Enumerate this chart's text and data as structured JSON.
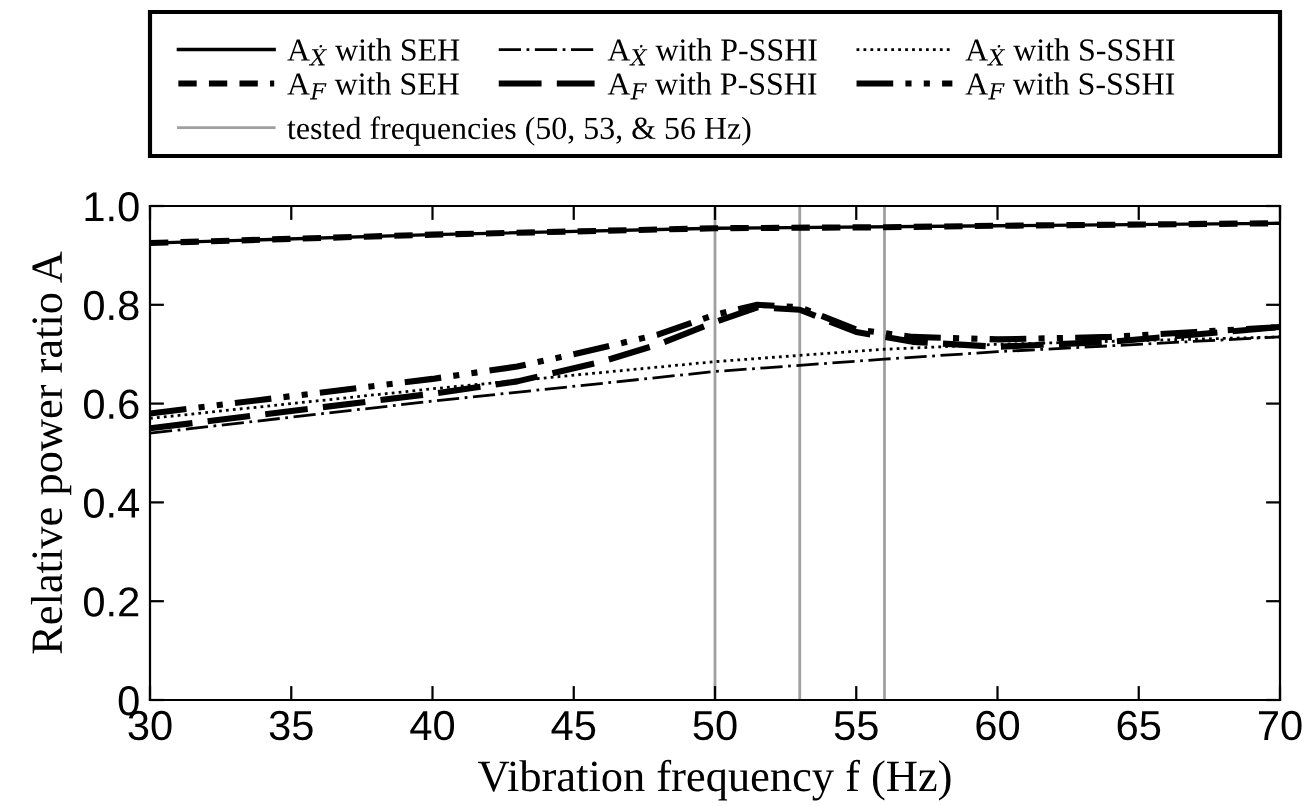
{
  "chart_data": {
    "type": "line",
    "xlabel": "Vibration frequency f (Hz)",
    "ylabel": "Relative power ratio A",
    "xlim": [
      30,
      70
    ],
    "xticks": [
      30,
      35,
      40,
      45,
      50,
      55,
      60,
      65,
      70
    ],
    "ylim": [
      0,
      1
    ],
    "yticks": [
      0,
      {
        "value": 0.2,
        "label": "0.2"
      },
      {
        "value": 0.4,
        "label": "0.4"
      },
      {
        "value": 0.6,
        "label": "0.6"
      },
      {
        "value": 0.8,
        "label": "0.8"
      },
      {
        "value": 1,
        "label": "1.0"
      }
    ],
    "grid": false,
    "legend": "top",
    "marker": "none",
    "series": [
      {
        "name": "A$_{Ẋ}$ with SEH",
        "color": "#000000",
        "line_style": "solid",
        "x": [
          30,
          40,
          50,
          60,
          70
        ],
        "values": [
          0.925,
          0.942,
          0.955,
          0.96,
          0.965
        ]
      },
      {
        "name": "A$_{Ẋ}$ with P-SSHI",
        "color": "#000000",
        "line_style": "dashdot",
        "x": [
          30,
          40,
          50,
          56,
          60,
          70
        ],
        "values": [
          0.54,
          0.605,
          0.665,
          0.69,
          0.705,
          0.735
        ]
      },
      {
        "name": "A$_{Ẋ}$ with S-SSHI",
        "color": "#000000",
        "line_style": "dotted",
        "x": [
          30,
          40,
          50,
          56,
          60,
          70
        ],
        "values": [
          0.57,
          0.63,
          0.685,
          0.71,
          0.72,
          0.735
        ]
      },
      {
        "name": "A$_{F}$ with SEH",
        "color": "#000000",
        "line_style": "dashed",
        "x": [
          30,
          40,
          50,
          56,
          60,
          70
        ],
        "values": [
          0.925,
          0.942,
          0.955,
          0.957,
          0.96,
          0.965
        ]
      },
      {
        "name": "A$_{F}$ with P-SSHI",
        "color": "#000000",
        "line_style": "longdash",
        "x": [
          30,
          35,
          40,
          43,
          46,
          48,
          50,
          51.5,
          53,
          55,
          57,
          60,
          64,
          67,
          70
        ],
        "values": [
          0.55,
          0.585,
          0.62,
          0.645,
          0.685,
          0.72,
          0.765,
          0.795,
          0.79,
          0.745,
          0.725,
          0.715,
          0.725,
          0.74,
          0.755
        ]
      },
      {
        "name": "A$_{F}$ with S-SSHI",
        "color": "#000000",
        "line_style": "dashdotdot",
        "x": [
          30,
          35,
          40,
          43,
          45,
          48,
          50,
          51.5,
          53,
          55,
          57,
          60,
          64,
          67,
          70
        ],
        "values": [
          0.58,
          0.615,
          0.65,
          0.675,
          0.7,
          0.74,
          0.78,
          0.8,
          0.795,
          0.75,
          0.735,
          0.73,
          0.735,
          0.745,
          0.755
        ]
      }
    ],
    "ref_lines": [
      {
        "axis": "x",
        "value": 50,
        "label": "tested frequencies (50, 53, & 56 Hz)",
        "color": "#a0a0a0"
      },
      {
        "axis": "x",
        "value": 53,
        "color": "#a0a0a0"
      },
      {
        "axis": "x",
        "value": 56,
        "color": "#a0a0a0"
      }
    ]
  }
}
